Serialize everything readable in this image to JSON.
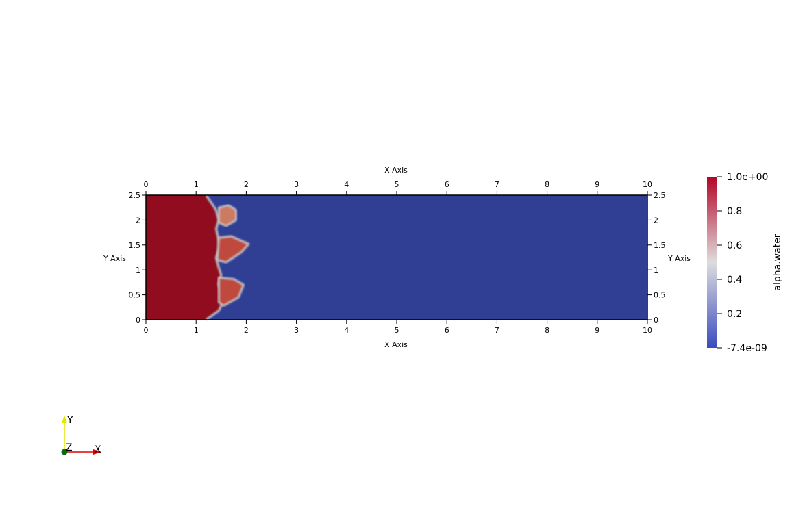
{
  "chart_data": {
    "type": "heatmap",
    "field_name": "alpha.water",
    "xlabel": "X Axis",
    "ylabel": "Y Axis",
    "xlim": [
      0,
      10
    ],
    "ylim": [
      0,
      2.5
    ],
    "x_ticks": [
      "0",
      "1",
      "2",
      "3",
      "4",
      "5",
      "6",
      "7",
      "8",
      "9",
      "10"
    ],
    "x_tick_values": [
      0,
      1,
      2,
      3,
      4,
      5,
      6,
      7,
      8,
      9,
      10
    ],
    "y_ticks": [
      "0",
      "0.5",
      "1",
      "1.5",
      "2",
      "2.5"
    ],
    "y_tick_values": [
      0,
      0.5,
      1,
      1.5,
      2,
      2.5
    ],
    "colorbar": {
      "range": [
        -7.4e-09,
        1.0
      ],
      "labels": [
        "1.0e+00",
        "0.8",
        "0.6",
        "0.4",
        "0.2",
        "-7.4e-09"
      ],
      "label_values": [
        1.0,
        0.8,
        0.6,
        0.4,
        0.2,
        0.0
      ],
      "colors": {
        "low": "#3b4cc0",
        "mid": "#dddddd",
        "high": "#b40426"
      }
    },
    "field_colors": {
      "water": "#900c1e",
      "air": "#303f93",
      "interface": "#c8c8c8",
      "mixed": "#bf4a3c",
      "mixed_light": "#cd7a62"
    },
    "interface_profile": [
      [
        1.2,
        0.0
      ],
      [
        1.45,
        0.18
      ],
      [
        1.55,
        0.38
      ],
      [
        1.5,
        0.55
      ],
      [
        1.45,
        0.72
      ],
      [
        1.5,
        0.9
      ],
      [
        1.45,
        1.05
      ],
      [
        1.4,
        1.25
      ],
      [
        1.48,
        1.45
      ],
      [
        1.45,
        1.62
      ],
      [
        1.4,
        1.82
      ],
      [
        1.45,
        2.0
      ],
      [
        1.4,
        2.2
      ],
      [
        1.2,
        2.5
      ]
    ],
    "water_blobs": [
      {
        "points": [
          [
            1.45,
            2.25
          ],
          [
            1.65,
            2.3
          ],
          [
            1.8,
            2.2
          ],
          [
            1.8,
            2.0
          ],
          [
            1.6,
            1.88
          ],
          [
            1.45,
            1.95
          ]
        ]
      },
      {
        "points": [
          [
            1.45,
            1.65
          ],
          [
            1.7,
            1.68
          ],
          [
            2.05,
            1.52
          ],
          [
            1.9,
            1.35
          ],
          [
            1.6,
            1.15
          ],
          [
            1.42,
            1.2
          ]
        ]
      },
      {
        "points": [
          [
            1.45,
            0.85
          ],
          [
            1.75,
            0.82
          ],
          [
            1.95,
            0.7
          ],
          [
            1.85,
            0.45
          ],
          [
            1.55,
            0.28
          ],
          [
            1.45,
            0.35
          ]
        ]
      }
    ],
    "orientation_axes": {
      "labels": [
        "X",
        "Y",
        "Z"
      ],
      "colors": {
        "x": "#e00000",
        "y": "#e6e600",
        "z": "#0a6b0a"
      }
    }
  }
}
